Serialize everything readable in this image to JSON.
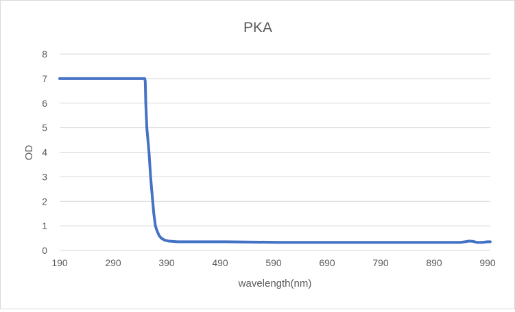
{
  "chart_data": {
    "type": "line",
    "title": "PKA",
    "xlabel": "wavelength(nm)",
    "ylabel": "OD",
    "xlim": [
      190,
      1000
    ],
    "ylim": [
      0,
      8
    ],
    "xticks": [
      190,
      290,
      390,
      490,
      590,
      690,
      790,
      890,
      990
    ],
    "yticks": [
      0,
      1,
      2,
      3,
      4,
      5,
      6,
      7,
      8
    ],
    "grid": "horizontal",
    "legend": "none",
    "series": [
      {
        "color": "#4472c4",
        "x": [
          190,
          300,
          349,
          350,
          351,
          353,
          355,
          357,
          360,
          364,
          366,
          369,
          372,
          376,
          380,
          386,
          394,
          410,
          500,
          600,
          700,
          800,
          900,
          940,
          950,
          955,
          962,
          970,
          980,
          990,
          995
        ],
        "y": [
          7,
          7,
          7,
          6.9,
          6.0,
          5.0,
          4.5,
          4.0,
          3.0,
          2.0,
          1.5,
          1.0,
          0.8,
          0.6,
          0.5,
          0.42,
          0.38,
          0.35,
          0.35,
          0.33,
          0.33,
          0.33,
          0.33,
          0.33,
          0.36,
          0.38,
          0.37,
          0.33,
          0.33,
          0.35,
          0.35
        ]
      }
    ]
  }
}
